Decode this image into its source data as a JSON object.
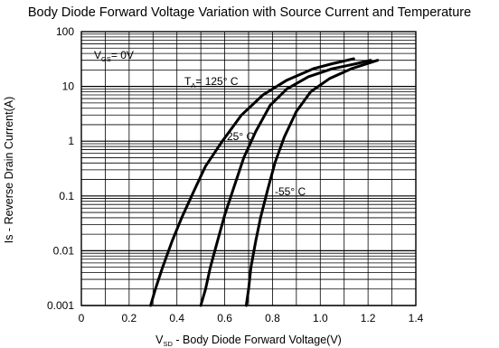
{
  "chart_data": {
    "type": "line",
    "title": "Body Diode Forward Voltage Variation with Source Current and Temperature",
    "xlabel": {
      "prefix": "V",
      "sub": "SD",
      "rest": " - Body Diode Forward Voltage(V)"
    },
    "ylabel": "Is - Reverse Drain Current(A)",
    "xlim": [
      0,
      1.4
    ],
    "ylim": [
      0.001,
      100
    ],
    "yscale": "log",
    "grid": true,
    "x_ticks": [
      "0",
      "0.2",
      "0.4",
      "0.6",
      "0.8",
      "1.0",
      "1.2",
      "1.4"
    ],
    "y_ticks": [
      "0.001",
      "0.01",
      "0.1",
      "1",
      "10",
      "100"
    ],
    "annotations": {
      "vgs": {
        "prefix": "V",
        "sub": "GS",
        "rest": "= 0V"
      },
      "ta": {
        "prefix": "T",
        "sub": "A",
        "rest": "= 125°  C"
      },
      "t25": "25°  C",
      "tm55": "-55°  C"
    },
    "series": [
      {
        "label": "125° C",
        "x": [
          0.29,
          0.31,
          0.34,
          0.38,
          0.42,
          0.47,
          0.52,
          0.59,
          0.67,
          0.76,
          0.86,
          0.97,
          1.05,
          1.14
        ],
        "y": [
          0.001,
          0.002,
          0.005,
          0.015,
          0.04,
          0.12,
          0.35,
          1.0,
          3.0,
          7.0,
          13,
          21,
          26,
          32
        ]
      },
      {
        "label": "25° C",
        "x": [
          0.5,
          0.52,
          0.54,
          0.57,
          0.6,
          0.64,
          0.68,
          0.73,
          0.79,
          0.86,
          0.95,
          1.05,
          1.15,
          1.21
        ],
        "y": [
          0.001,
          0.002,
          0.005,
          0.015,
          0.045,
          0.15,
          0.5,
          1.5,
          4.5,
          9.0,
          15,
          21,
          26,
          30
        ]
      },
      {
        "label": "-55° C",
        "x": [
          0.69,
          0.7,
          0.71,
          0.73,
          0.75,
          0.78,
          0.81,
          0.85,
          0.9,
          0.96,
          1.04,
          1.13,
          1.24
        ],
        "y": [
          0.001,
          0.002,
          0.005,
          0.015,
          0.04,
          0.13,
          0.4,
          1.2,
          3.5,
          8.0,
          14,
          21,
          30
        ]
      }
    ]
  }
}
